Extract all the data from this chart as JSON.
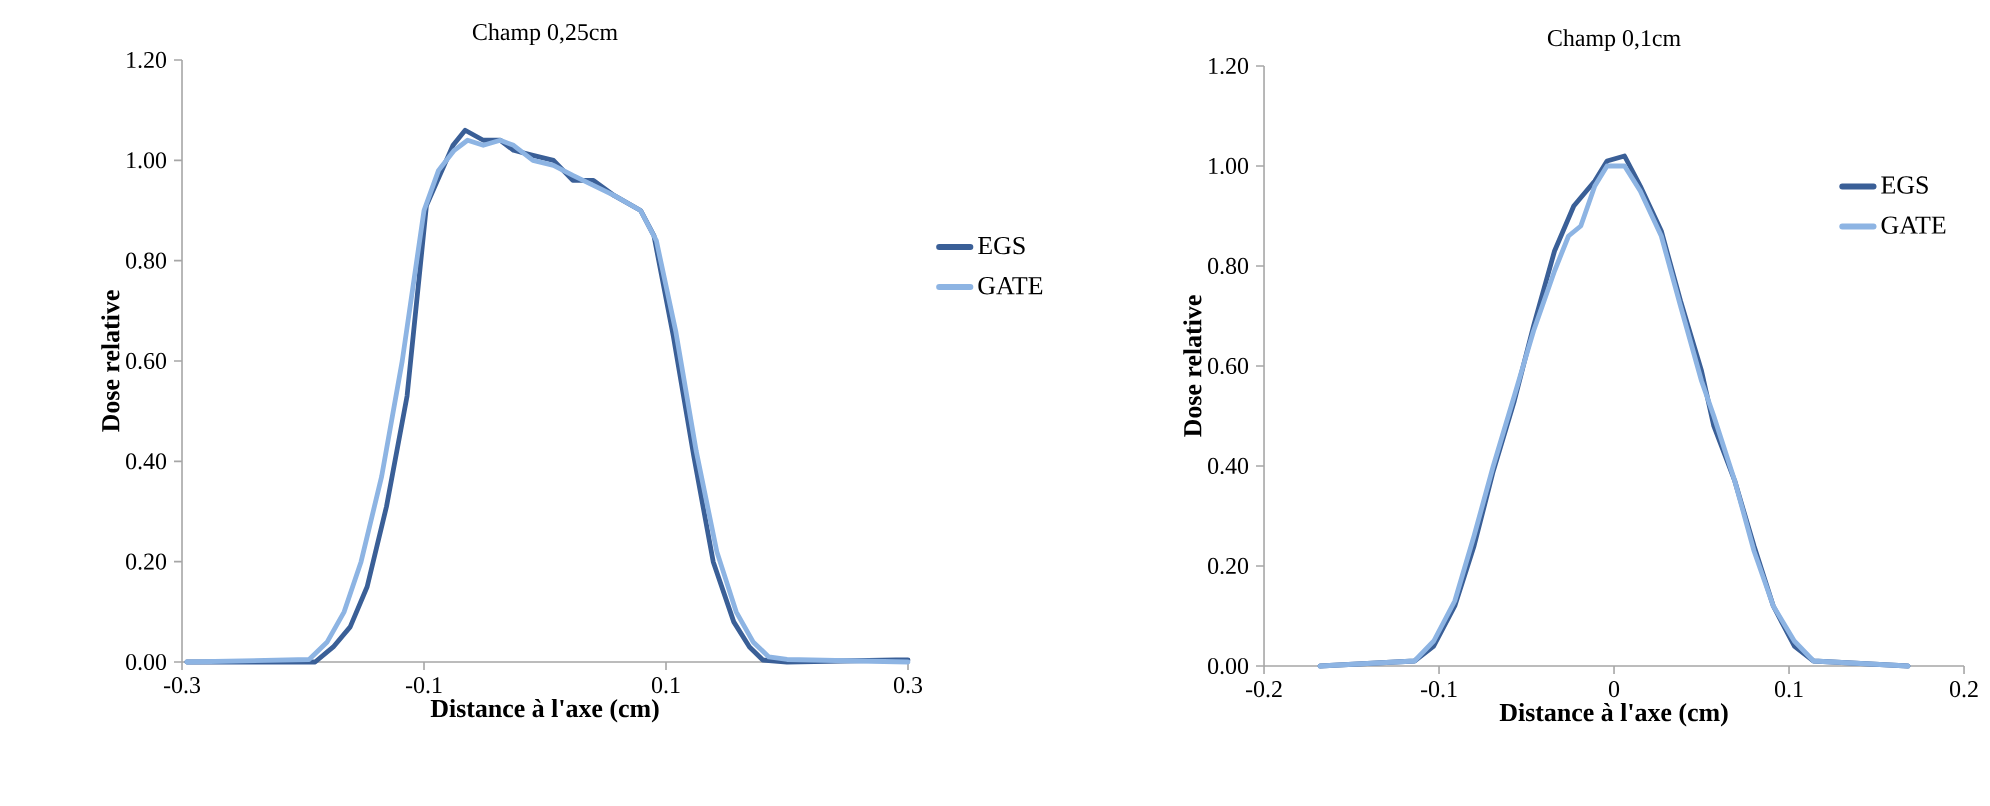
{
  "chart_data": [
    {
      "type": "line",
      "title": "Champ 0,25cm",
      "xlabel": "Distance à l'axe (cm)",
      "ylabel": "Dose relative",
      "legend": "right",
      "xlim": [
        -0.3,
        0.3
      ],
      "xticks": [
        -0.3,
        -0.1,
        0.1,
        0.3
      ],
      "ylim": [
        0,
        1.2
      ],
      "yticks": [
        {
          "value": 0,
          "label": "0.00"
        },
        {
          "value": 0.2,
          "label": "0.20"
        },
        {
          "value": 0.4,
          "label": "0.40"
        },
        {
          "value": 0.6,
          "label": "0.60"
        },
        {
          "value": 0.8,
          "label": "0.80"
        },
        {
          "value": 1.0,
          "label": "1.00"
        },
        {
          "value": 1.2,
          "label": "1.20"
        }
      ],
      "series": [
        {
          "name": "EGS",
          "color": "#3a5f97",
          "x": [
            -0.296,
            -0.19,
            -0.175,
            -0.161,
            -0.147,
            -0.131,
            -0.114,
            -0.098,
            -0.087,
            -0.076,
            -0.066,
            -0.051,
            -0.037,
            -0.026,
            -0.01,
            0.007,
            0.023,
            0.04,
            0.057,
            0.079,
            0.09,
            0.106,
            0.123,
            0.139,
            0.156,
            0.169,
            0.18,
            0.2,
            0.29,
            0.3
          ],
          "values": [
            0.0,
            0.0,
            0.03,
            0.07,
            0.15,
            0.31,
            0.53,
            0.91,
            0.97,
            1.03,
            1.06,
            1.04,
            1.04,
            1.02,
            1.01,
            1.0,
            0.96,
            0.96,
            0.93,
            0.9,
            0.85,
            0.65,
            0.41,
            0.2,
            0.08,
            0.03,
            0.004,
            0.0,
            0.004,
            0.004
          ]
        },
        {
          "name": "GATE",
          "color": "#8db4e3",
          "x": [
            -0.296,
            -0.195,
            -0.18,
            -0.166,
            -0.152,
            -0.135,
            -0.118,
            -0.1,
            -0.088,
            -0.075,
            -0.064,
            -0.051,
            -0.037,
            -0.026,
            -0.01,
            0.007,
            0.023,
            0.04,
            0.057,
            0.079,
            0.092,
            0.108,
            0.125,
            0.142,
            0.158,
            0.172,
            0.185,
            0.2,
            0.3
          ],
          "values": [
            0.0,
            0.005,
            0.04,
            0.1,
            0.2,
            0.37,
            0.6,
            0.9,
            0.98,
            1.02,
            1.04,
            1.03,
            1.04,
            1.03,
            1.0,
            0.99,
            0.97,
            0.95,
            0.93,
            0.9,
            0.84,
            0.66,
            0.42,
            0.22,
            0.1,
            0.04,
            0.01,
            0.005,
            0.0
          ]
        }
      ]
    },
    {
      "type": "line",
      "title": "Champ 0,1cm",
      "xlabel": "Distance à l'axe (cm)",
      "ylabel": "Dose relative",
      "legend": "top right",
      "xlim": [
        -0.2,
        0.2
      ],
      "xticks": [
        -0.2,
        -0.1,
        0,
        0.1,
        0.2
      ],
      "ylim": [
        0,
        1.2
      ],
      "yticks": [
        {
          "value": 0,
          "label": "0.00"
        },
        {
          "value": 0.2,
          "label": "0.20"
        },
        {
          "value": 0.4,
          "label": "0.40"
        },
        {
          "value": 0.6,
          "label": "0.60"
        },
        {
          "value": 0.8,
          "label": "0.80"
        },
        {
          "value": 1.0,
          "label": "1.00"
        },
        {
          "value": 1.2,
          "label": "1.20"
        }
      ],
      "series": [
        {
          "name": "EGS",
          "color": "#3a5f97",
          "x": [
            -0.168,
            -0.114,
            -0.103,
            -0.091,
            -0.08,
            -0.069,
            -0.057,
            -0.046,
            -0.034,
            -0.023,
            -0.011,
            -0.004,
            0.006,
            0.015,
            0.027,
            0.038,
            0.05,
            0.057,
            0.069,
            0.08,
            0.091,
            0.103,
            0.114,
            0.168
          ],
          "values": [
            0.0,
            0.01,
            0.04,
            0.12,
            0.24,
            0.39,
            0.53,
            0.68,
            0.83,
            0.92,
            0.97,
            1.01,
            1.02,
            0.96,
            0.87,
            0.73,
            0.59,
            0.48,
            0.37,
            0.24,
            0.12,
            0.04,
            0.01,
            0.0
          ]
        },
        {
          "name": "GATE",
          "color": "#8db4e3",
          "x": [
            -0.168,
            -0.114,
            -0.103,
            -0.091,
            -0.08,
            -0.069,
            -0.057,
            -0.046,
            -0.034,
            -0.026,
            -0.019,
            -0.011,
            -0.004,
            0.006,
            0.015,
            0.027,
            0.038,
            0.05,
            0.057,
            0.069,
            0.08,
            0.091,
            0.103,
            0.114,
            0.168
          ],
          "values": [
            0.0,
            0.01,
            0.05,
            0.13,
            0.26,
            0.4,
            0.54,
            0.67,
            0.79,
            0.86,
            0.88,
            0.96,
            1.0,
            1.0,
            0.95,
            0.86,
            0.72,
            0.57,
            0.5,
            0.37,
            0.23,
            0.12,
            0.05,
            0.01,
            0.0
          ]
        }
      ]
    }
  ]
}
